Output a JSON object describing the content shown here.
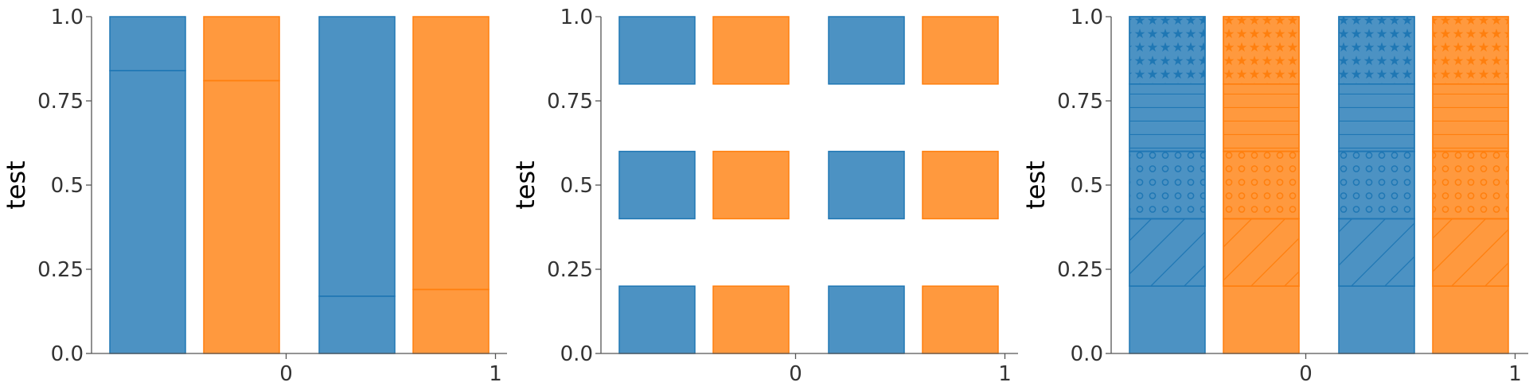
{
  "colors": {
    "series_0": "#1f77b4",
    "series_1": "#ff7f0e",
    "axis": "#555555",
    "text": "#333333"
  },
  "chart_data": [
    {
      "type": "bar",
      "title": "",
      "xlabel": "",
      "ylabel": "test",
      "ylim": [
        0,
        1
      ],
      "yticks": [
        "0.0",
        "0.25",
        "0.5",
        "0.75",
        "1.0"
      ],
      "ytick_values": [
        0,
        0.25,
        0.5,
        0.75,
        1.0
      ],
      "categories": [
        "0",
        "1"
      ],
      "grid": false,
      "series": [
        {
          "color": "#1f77b4",
          "segments": [
            {
              "from": 0.0,
              "to": 0.84
            },
            {
              "from": 0.84,
              "to": 1.0
            }
          ],
          "segments_by_category": [
            [
              {
                "from": 0.0,
                "to": 0.84
              },
              {
                "from": 0.84,
                "to": 1.0
              }
            ],
            [
              {
                "from": 0.0,
                "to": 0.17
              },
              {
                "from": 0.17,
                "to": 1.0
              }
            ]
          ]
        },
        {
          "color": "#ff7f0e",
          "segments_by_category": [
            [
              {
                "from": 0.0,
                "to": 0.81
              },
              {
                "from": 0.81,
                "to": 1.0
              }
            ],
            [
              {
                "from": 0.0,
                "to": 0.19
              },
              {
                "from": 0.19,
                "to": 1.0
              }
            ]
          ]
        }
      ]
    },
    {
      "type": "bar",
      "title": "",
      "xlabel": "",
      "ylabel": "test",
      "ylim": [
        0,
        1
      ],
      "yticks": [
        "0.0",
        "0.25",
        "0.5",
        "0.75",
        "1.0"
      ],
      "ytick_values": [
        0,
        0.25,
        0.5,
        0.75,
        1.0
      ],
      "categories": [
        "0",
        "1"
      ],
      "grid": false,
      "series": [
        {
          "color": "#1f77b4",
          "segments_by_category": [
            [
              {
                "from": 0.0,
                "to": 0.2
              },
              {
                "from": 0.4,
                "to": 0.6
              },
              {
                "from": 0.8,
                "to": 1.0
              }
            ],
            [
              {
                "from": 0.0,
                "to": 0.2
              },
              {
                "from": 0.4,
                "to": 0.6
              },
              {
                "from": 0.8,
                "to": 1.0
              }
            ]
          ]
        },
        {
          "color": "#ff7f0e",
          "segments_by_category": [
            [
              {
                "from": 0.0,
                "to": 0.2
              },
              {
                "from": 0.4,
                "to": 0.6
              },
              {
                "from": 0.8,
                "to": 1.0
              }
            ],
            [
              {
                "from": 0.0,
                "to": 0.2
              },
              {
                "from": 0.4,
                "to": 0.6
              },
              {
                "from": 0.8,
                "to": 1.0
              }
            ]
          ]
        }
      ]
    },
    {
      "type": "bar",
      "title": "",
      "xlabel": "",
      "ylabel": "test",
      "ylim": [
        0,
        1
      ],
      "yticks": [
        "0.0",
        "0.25",
        "0.5",
        "0.75",
        "1.0"
      ],
      "ytick_values": [
        0,
        0.25,
        0.5,
        0.75,
        1.0
      ],
      "categories": [
        "0",
        "1"
      ],
      "grid": false,
      "series": [
        {
          "color": "#1f77b4",
          "segments_by_category": [
            [
              {
                "from": 0.0,
                "to": 0.2,
                "hatch": "none"
              },
              {
                "from": 0.2,
                "to": 0.4,
                "hatch": "diagonal"
              },
              {
                "from": 0.4,
                "to": 0.6,
                "hatch": "circles"
              },
              {
                "from": 0.6,
                "to": 0.8,
                "hatch": "horizontal"
              },
              {
                "from": 0.8,
                "to": 1.0,
                "hatch": "stars"
              }
            ],
            [
              {
                "from": 0.0,
                "to": 0.2,
                "hatch": "none"
              },
              {
                "from": 0.2,
                "to": 0.4,
                "hatch": "diagonal"
              },
              {
                "from": 0.4,
                "to": 0.6,
                "hatch": "circles"
              },
              {
                "from": 0.6,
                "to": 0.8,
                "hatch": "horizontal"
              },
              {
                "from": 0.8,
                "to": 1.0,
                "hatch": "stars"
              }
            ]
          ]
        },
        {
          "color": "#ff7f0e",
          "segments_by_category": [
            [
              {
                "from": 0.0,
                "to": 0.2,
                "hatch": "none"
              },
              {
                "from": 0.2,
                "to": 0.4,
                "hatch": "diagonal"
              },
              {
                "from": 0.4,
                "to": 0.6,
                "hatch": "circles"
              },
              {
                "from": 0.6,
                "to": 0.8,
                "hatch": "horizontal"
              },
              {
                "from": 0.8,
                "to": 1.0,
                "hatch": "stars"
              }
            ],
            [
              {
                "from": 0.0,
                "to": 0.2,
                "hatch": "none"
              },
              {
                "from": 0.2,
                "to": 0.4,
                "hatch": "diagonal"
              },
              {
                "from": 0.4,
                "to": 0.6,
                "hatch": "circles"
              },
              {
                "from": 0.6,
                "to": 0.8,
                "hatch": "horizontal"
              },
              {
                "from": 0.8,
                "to": 1.0,
                "hatch": "stars"
              }
            ]
          ]
        }
      ]
    }
  ]
}
